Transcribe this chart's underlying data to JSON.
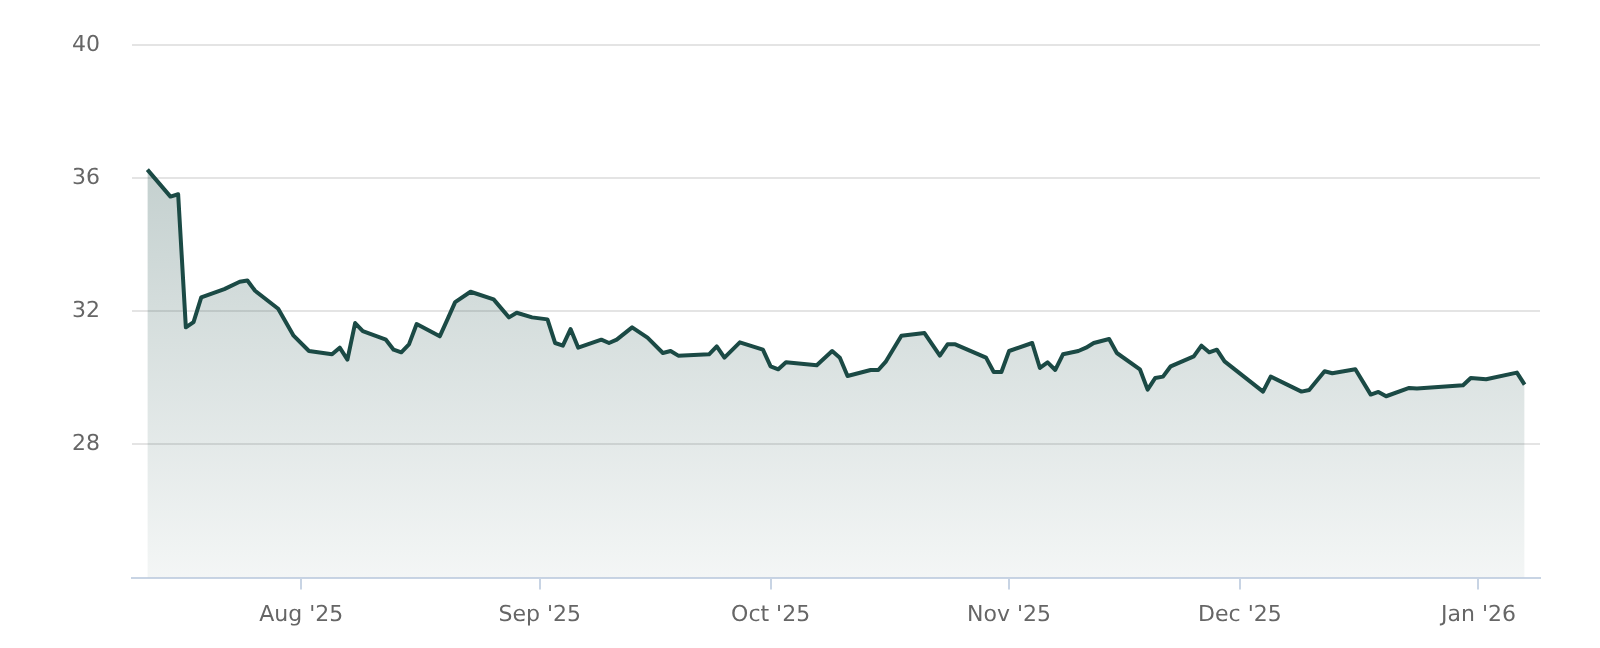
{
  "chart_data": {
    "type": "area",
    "x": [
      "2025-07-12",
      "2025-07-15",
      "2025-07-16",
      "2025-07-17",
      "2025-07-18",
      "2025-07-19",
      "2025-07-22",
      "2025-07-24",
      "2025-07-25",
      "2025-07-26",
      "2025-07-29",
      "2025-07-31",
      "2025-08-02",
      "2025-08-05",
      "2025-08-06",
      "2025-08-07",
      "2025-08-08",
      "2025-08-09",
      "2025-08-12",
      "2025-08-13",
      "2025-08-14",
      "2025-08-15",
      "2025-08-16",
      "2025-08-19",
      "2025-08-20",
      "2025-08-21",
      "2025-08-23",
      "2025-08-26",
      "2025-08-28",
      "2025-08-29",
      "2025-08-31",
      "2025-09-02",
      "2025-09-03",
      "2025-09-04",
      "2025-09-05",
      "2025-09-06",
      "2025-09-09",
      "2025-09-10",
      "2025-09-11",
      "2025-09-13",
      "2025-09-15",
      "2025-09-17",
      "2025-09-18",
      "2025-09-19",
      "2025-09-23",
      "2025-09-24",
      "2025-09-25",
      "2025-09-27",
      "2025-09-30",
      "2025-10-01",
      "2025-10-02",
      "2025-10-03",
      "2025-10-07",
      "2025-10-09",
      "2025-10-10",
      "2025-10-11",
      "2025-10-14",
      "2025-10-15",
      "2025-10-16",
      "2025-10-18",
      "2025-10-21",
      "2025-10-23",
      "2025-10-24",
      "2025-10-25",
      "2025-10-29",
      "2025-10-30",
      "2025-10-31",
      "2025-11-01",
      "2025-11-04",
      "2025-11-05",
      "2025-11-06",
      "2025-11-07",
      "2025-11-08",
      "2025-11-10",
      "2025-11-11",
      "2025-11-12",
      "2025-11-14",
      "2025-11-15",
      "2025-11-18",
      "2025-11-19",
      "2025-11-20",
      "2025-11-21",
      "2025-11-22",
      "2025-11-25",
      "2025-11-26",
      "2025-11-27",
      "2025-11-28",
      "2025-11-29",
      "2025-12-04",
      "2025-12-05",
      "2025-12-09",
      "2025-12-10",
      "2025-12-12",
      "2025-12-13",
      "2025-12-16",
      "2025-12-18",
      "2025-12-19",
      "2025-12-20",
      "2025-12-23",
      "2025-12-24",
      "2025-12-30",
      "2025-12-31",
      "2026-01-02",
      "2026-01-06",
      "2026-01-07"
    ],
    "series": [
      {
        "color": "#1b4a45",
        "values": [
          36.26,
          35.45,
          35.52,
          31.52,
          31.68,
          32.42,
          32.67,
          32.89,
          32.93,
          32.62,
          32.08,
          31.27,
          30.81,
          30.71,
          30.91,
          30.55,
          31.65,
          31.41,
          31.15,
          30.85,
          30.77,
          31.01,
          31.62,
          31.25,
          31.76,
          32.28,
          32.59,
          32.36,
          31.82,
          31.96,
          31.82,
          31.76,
          31.05,
          30.97,
          31.47,
          30.91,
          31.15,
          31.05,
          31.15,
          31.52,
          31.21,
          30.75,
          30.81,
          30.67,
          30.71,
          30.95,
          30.61,
          31.07,
          30.85,
          30.35,
          30.26,
          30.47,
          30.38,
          30.81,
          30.61,
          30.06,
          30.24,
          30.24,
          30.5,
          31.27,
          31.35,
          30.67,
          31.01,
          31.01,
          30.61,
          30.18,
          30.18,
          30.81,
          31.05,
          30.3,
          30.47,
          30.24,
          30.71,
          30.81,
          30.91,
          31.05,
          31.17,
          30.75,
          30.26,
          29.65,
          30.0,
          30.04,
          30.35,
          30.65,
          30.97,
          30.77,
          30.85,
          30.5,
          29.59,
          30.04,
          29.59,
          29.64,
          30.2,
          30.14,
          30.26,
          29.5,
          29.58,
          29.45,
          29.7,
          29.68,
          29.78,
          30.0,
          29.96,
          30.16,
          29.8
        ]
      }
    ],
    "xlim": [
      "2025-07-10",
      "2026-01-09"
    ],
    "xticks": [
      {
        "value": "2025-08-01",
        "label": "Aug '25"
      },
      {
        "value": "2025-09-01",
        "label": "Sep '25"
      },
      {
        "value": "2025-10-01",
        "label": "Oct '25"
      },
      {
        "value": "2025-11-01",
        "label": "Nov '25"
      },
      {
        "value": "2025-12-01",
        "label": "Dec '25"
      },
      {
        "value": "2026-01-01",
        "label": "Jan '26"
      }
    ],
    "ylim": [
      24,
      40
    ],
    "yticks": [
      28,
      32,
      36,
      40
    ],
    "grid": "y",
    "legend": false,
    "marker": "none",
    "line_style": "solid"
  }
}
